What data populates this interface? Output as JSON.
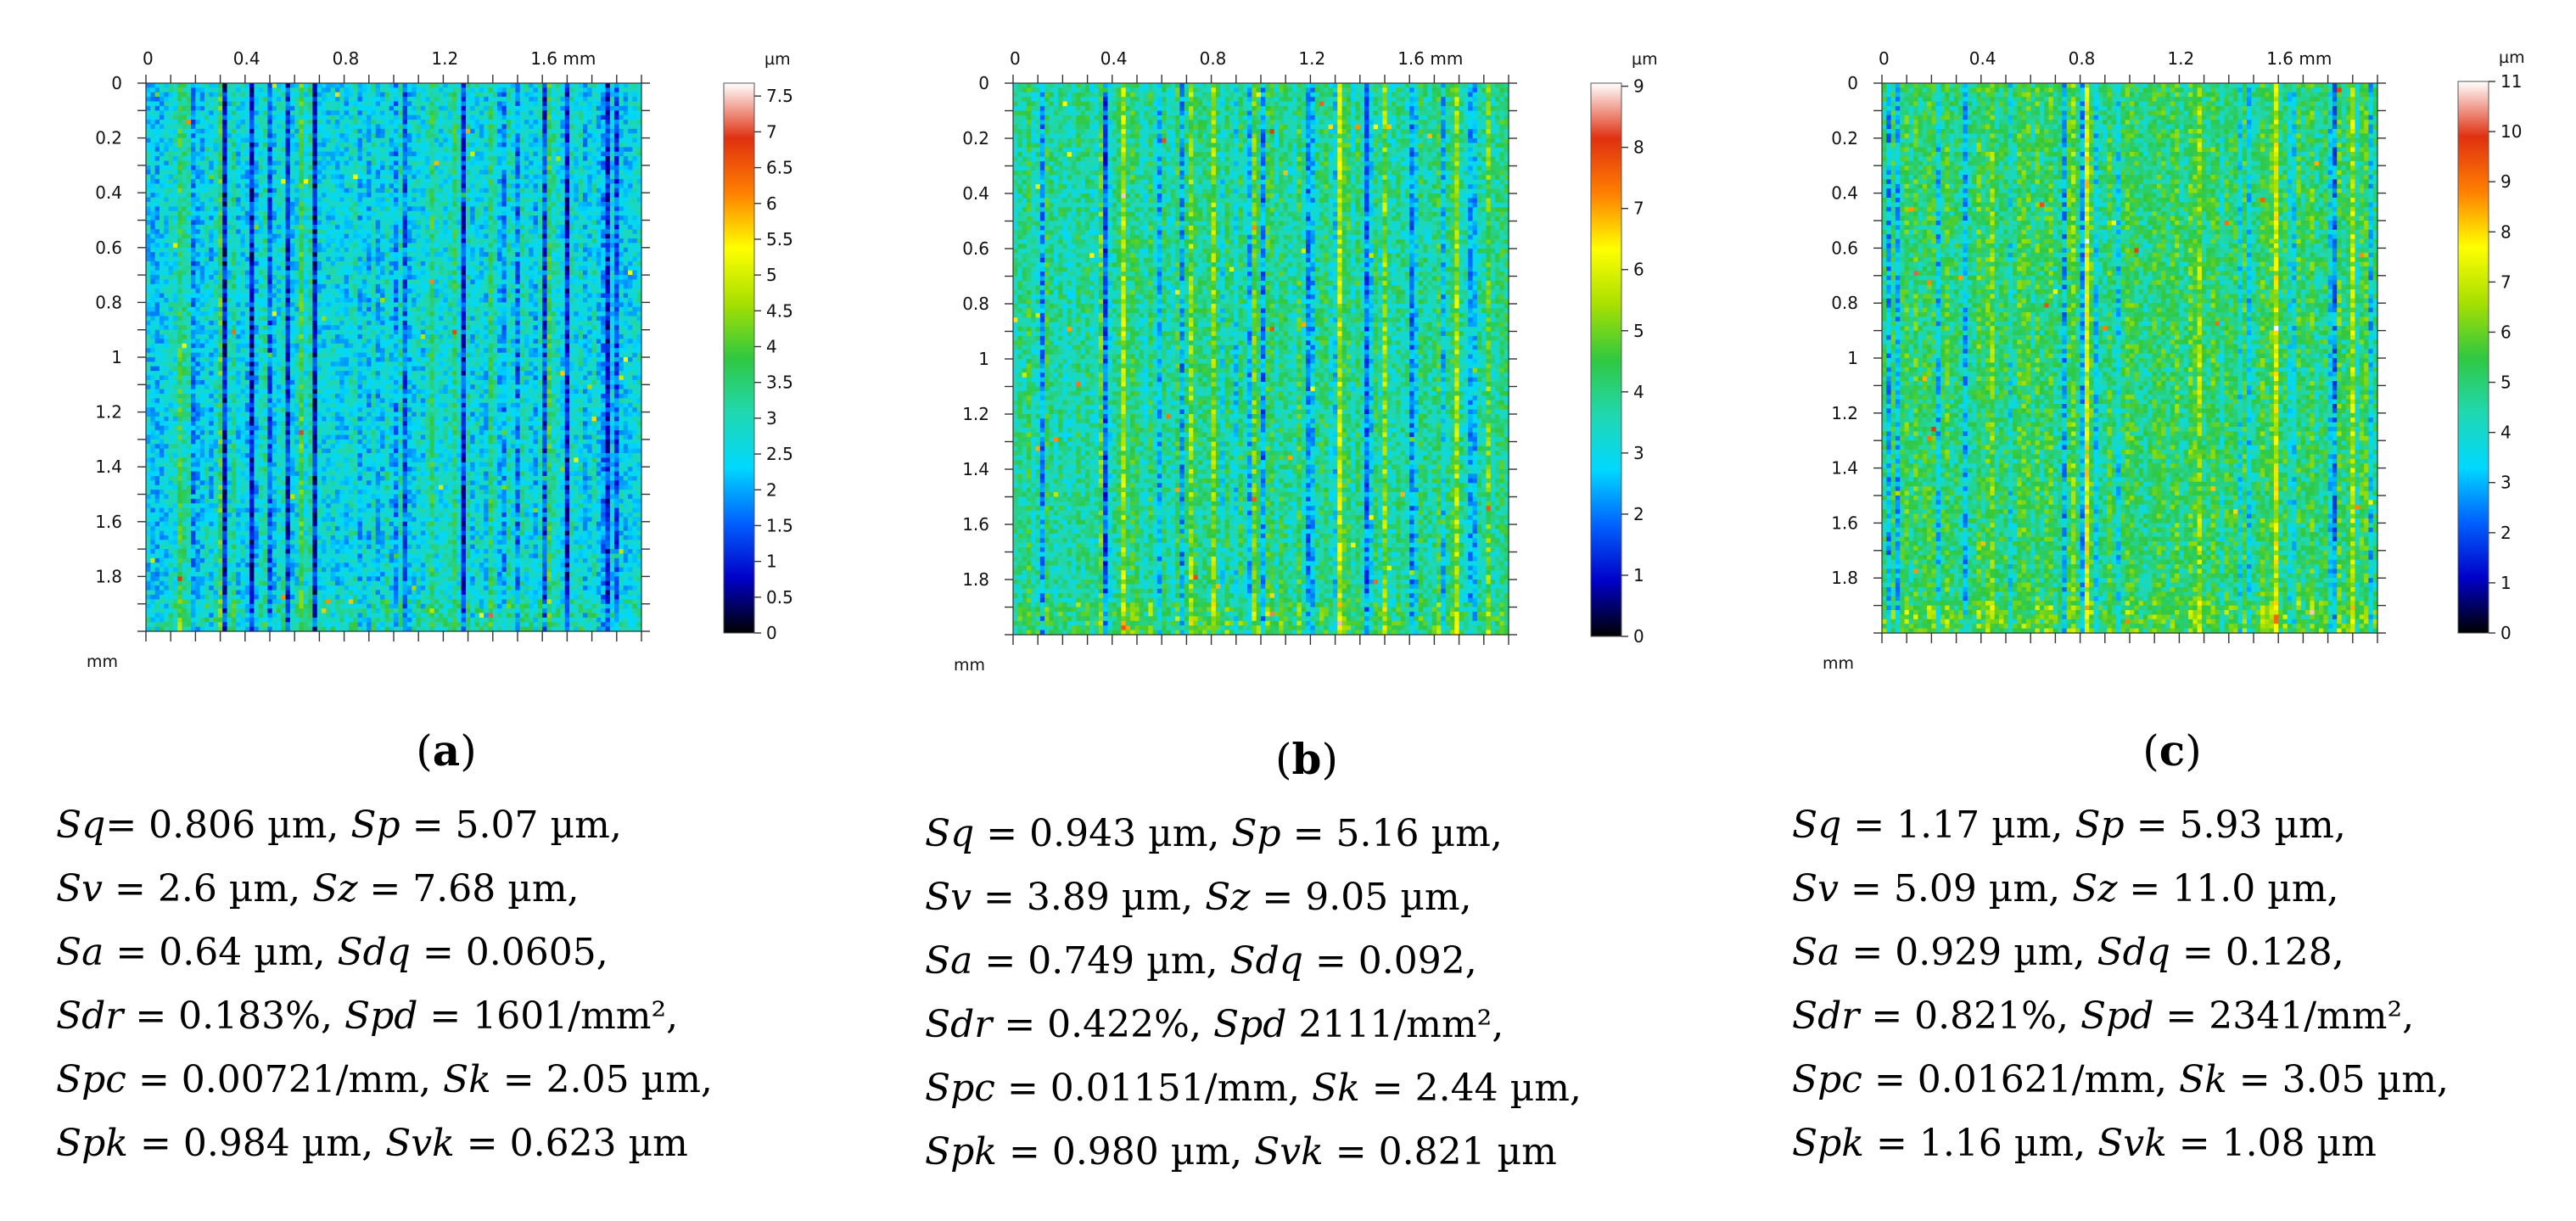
{
  "chart_data": [
    {
      "type": "heatmap",
      "id": "a",
      "caption_letter": "a",
      "title": "(a)",
      "x_unit": "mm",
      "y_unit": "mm",
      "value_unit": "µm",
      "x_ticks": [
        "0",
        "0.4",
        "0.8",
        "1.2",
        "1.6 mm"
      ],
      "x_tick_values": [
        0,
        0.4,
        0.8,
        1.2,
        1.6
      ],
      "y_ticks": [
        "0",
        "0.2",
        "0.4",
        "0.6",
        "0.8",
        "1",
        "1.2",
        "1.4",
        "1.6",
        "1.8"
      ],
      "y_tick_values": [
        0,
        0.2,
        0.4,
        0.6,
        0.8,
        1.0,
        1.2,
        1.4,
        1.6,
        1.8
      ],
      "xlim": [
        0,
        2.0
      ],
      "ylim": [
        0,
        2.0
      ],
      "colorbar_ticks": [
        "0",
        "0.5",
        "1",
        "1.5",
        "2",
        "2.5",
        "3",
        "3.5",
        "4",
        "4.5",
        "5",
        "5.5",
        "6",
        "6.5",
        "7",
        "7.5"
      ],
      "colorbar_tick_values": [
        0,
        0.5,
        1,
        1.5,
        2,
        2.5,
        3,
        3.5,
        4,
        4.5,
        5,
        5.5,
        6,
        6.5,
        7,
        7.5
      ],
      "zlim": [
        0,
        7.68
      ],
      "surface_mean": 2.6,
      "surface_spread": 0.64,
      "seed": 11,
      "params_lines": [
        [
          [
            "Sq",
            "= 0.806 µm, "
          ],
          [
            "Sp",
            " = 5.07 µm,"
          ]
        ],
        [
          [
            "Sv",
            " = 2.6 µm, "
          ],
          [
            "Sz",
            " = 7.68 µm,"
          ]
        ],
        [
          [
            "Sa",
            " = 0.64 µm, "
          ],
          [
            "Sdq",
            " = 0.0605,"
          ]
        ],
        [
          [
            "Sdr",
            " = 0.183%, "
          ],
          [
            "Spd",
            " = 1601/mm², "
          ]
        ],
        [
          [
            "Spc",
            " = 0.00721/mm, "
          ],
          [
            "Sk",
            " = 2.05 µm,"
          ]
        ],
        [
          [
            "Spk",
            " = 0.984 µm, "
          ],
          [
            "Svk",
            " = 0.623 µm"
          ]
        ]
      ]
    },
    {
      "type": "heatmap",
      "id": "b",
      "caption_letter": "b",
      "title": "(b)",
      "x_unit": "mm",
      "y_unit": "mm",
      "value_unit": "µm",
      "x_ticks": [
        "0",
        "0.4",
        "0.8",
        "1.2",
        "1.6 mm"
      ],
      "x_tick_values": [
        0,
        0.4,
        0.8,
        1.2,
        1.6
      ],
      "y_ticks": [
        "0",
        "0.2",
        "0.4",
        "0.6",
        "0.8",
        "1",
        "1.2",
        "1.4",
        "1.6",
        "1.8"
      ],
      "y_tick_values": [
        0,
        0.2,
        0.4,
        0.6,
        0.8,
        1.0,
        1.2,
        1.4,
        1.6,
        1.8
      ],
      "xlim": [
        0,
        2.0
      ],
      "ylim": [
        0,
        2.0
      ],
      "colorbar_ticks": [
        "0",
        "1",
        "2",
        "3",
        "4",
        "5",
        "6",
        "7",
        "8",
        "9"
      ],
      "colorbar_tick_values": [
        0,
        1,
        2,
        3,
        4,
        5,
        6,
        7,
        8,
        9
      ],
      "zlim": [
        0,
        9.05
      ],
      "surface_mean": 3.89,
      "surface_spread": 0.749,
      "seed": 23,
      "params_lines": [
        [
          [
            "Sq",
            " = 0.943 µm, "
          ],
          [
            "Sp",
            " = 5.16 µm,"
          ]
        ],
        [
          [
            "Sv",
            " = 3.89 µm, "
          ],
          [
            "Sz",
            " = 9.05 µm,"
          ]
        ],
        [
          [
            "Sa",
            " = 0.749 µm, "
          ],
          [
            "Sdq",
            " = 0.092,"
          ]
        ],
        [
          [
            "Sdr",
            " = 0.422%, "
          ],
          [
            "Spd",
            " 2111/mm²,"
          ]
        ],
        [
          [
            "Spc",
            " = 0.01151/mm, "
          ],
          [
            "Sk",
            " = 2.44 µm,"
          ]
        ],
        [
          [
            "Spk",
            " = 0.980 µm, "
          ],
          [
            "Svk",
            " = 0.821 µm"
          ]
        ]
      ]
    },
    {
      "type": "heatmap",
      "id": "c",
      "caption_letter": "c",
      "title": "(c)",
      "x_unit": "mm",
      "y_unit": "mm",
      "value_unit": "µm",
      "x_ticks": [
        "0",
        "0.4",
        "0.8",
        "1.2",
        "1.6 mm"
      ],
      "x_tick_values": [
        0,
        0.4,
        0.8,
        1.2,
        1.6
      ],
      "y_ticks": [
        "0",
        "0.2",
        "0.4",
        "0.6",
        "0.8",
        "1",
        "1.2",
        "1.4",
        "1.6",
        "1.8"
      ],
      "y_tick_values": [
        0,
        0.2,
        0.4,
        0.6,
        0.8,
        1.0,
        1.2,
        1.4,
        1.6,
        1.8
      ],
      "xlim": [
        0,
        2.0
      ],
      "ylim": [
        0,
        2.0
      ],
      "colorbar_ticks": [
        "0",
        "1",
        "2",
        "3",
        "4",
        "5",
        "6",
        "7",
        "8",
        "9",
        "10",
        "11"
      ],
      "colorbar_tick_values": [
        0,
        1,
        2,
        3,
        4,
        5,
        6,
        7,
        8,
        9,
        10,
        11
      ],
      "zlim": [
        0,
        11.0
      ],
      "surface_mean": 5.09,
      "surface_spread": 0.929,
      "seed": 37,
      "params_lines": [
        [
          [
            "Sq",
            " = 1.17 µm, "
          ],
          [
            "Sp",
            " = 5.93 µm,"
          ]
        ],
        [
          [
            "Sv",
            " = 5.09 µm, "
          ],
          [
            "Sz",
            " = 11.0 µm,"
          ]
        ],
        [
          [
            "Sa",
            " = 0.929 µm, "
          ],
          [
            "Sdq",
            " = 0.128,"
          ]
        ],
        [
          [
            "Sdr",
            " = 0.821%, "
          ],
          [
            "Spd",
            " = 2341/mm², "
          ]
        ],
        [
          [
            "Spc",
            " = 0.01621/mm, "
          ],
          [
            "Sk",
            " = 3.05 µm,"
          ]
        ],
        [
          [
            "Spk",
            " = 1.16 µm, "
          ],
          [
            "Svk",
            " = 1.08 µm"
          ]
        ]
      ]
    }
  ],
  "colormap": [
    "#000000",
    "#0000c8",
    "#0060ff",
    "#00d8ff",
    "#20d8b0",
    "#30c840",
    "#a8e000",
    "#ffff00",
    "#ff8000",
    "#e03010",
    "#ffffff"
  ]
}
